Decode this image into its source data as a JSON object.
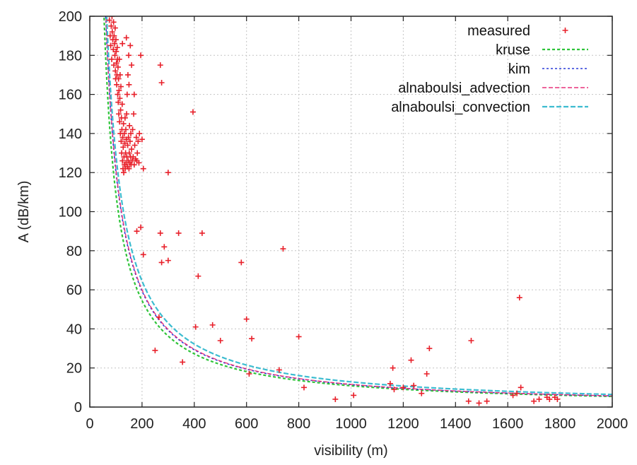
{
  "chart_data": {
    "type": "scatter",
    "title": "",
    "xlabel": "visibility (m)",
    "ylabel": "A (dB/km)",
    "xlim": [
      0,
      2000
    ],
    "ylim": [
      0,
      200
    ],
    "xticks": [
      "0",
      "200",
      "400",
      "600",
      "800",
      "1000",
      "1200",
      "1400",
      "1600",
      "1800",
      "2000"
    ],
    "yticks": [
      "0",
      "20",
      "40",
      "60",
      "80",
      "100",
      "120",
      "140",
      "160",
      "180",
      "200"
    ],
    "grid": true,
    "legend_position": "top-right",
    "series": [
      {
        "name": "measured",
        "kind": "points",
        "color": "#e8202a",
        "points": [
          [
            75,
            198
          ],
          [
            78,
            190
          ],
          [
            80,
            185
          ],
          [
            82,
            195
          ],
          [
            84,
            178
          ],
          [
            85,
            200
          ],
          [
            86,
            192
          ],
          [
            88,
            188
          ],
          [
            90,
            183
          ],
          [
            91,
            197
          ],
          [
            92,
            175
          ],
          [
            93,
            190
          ],
          [
            95,
            186
          ],
          [
            96,
            180
          ],
          [
            97,
            194
          ],
          [
            98,
            172
          ],
          [
            99,
            168
          ],
          [
            100,
            188
          ],
          [
            101,
            182
          ],
          [
            102,
            176
          ],
          [
            103,
            165
          ],
          [
            104,
            170
          ],
          [
            105,
            184
          ],
          [
            106,
            178
          ],
          [
            107,
            160
          ],
          [
            108,
            174
          ],
          [
            109,
            156
          ],
          [
            110,
            168
          ],
          [
            111,
            150
          ],
          [
            112,
            162
          ],
          [
            113,
            178
          ],
          [
            114,
            146
          ],
          [
            115,
            158
          ],
          [
            116,
            170
          ],
          [
            117,
            140
          ],
          [
            118,
            152
          ],
          [
            119,
            164
          ],
          [
            120,
            136
          ],
          [
            121,
            148
          ],
          [
            122,
            130
          ],
          [
            123,
            142
          ],
          [
            124,
            155
          ],
          [
            125,
            126
          ],
          [
            126,
            138
          ],
          [
            127,
            122
          ],
          [
            128,
            133
          ],
          [
            129,
            145
          ],
          [
            130,
            120
          ],
          [
            131,
            128
          ],
          [
            132,
            140
          ],
          [
            133,
            124
          ],
          [
            134,
            135
          ],
          [
            135,
            148
          ],
          [
            136,
            122
          ],
          [
            137,
            130
          ],
          [
            138,
            142
          ],
          [
            139,
            125
          ],
          [
            140,
            137
          ],
          [
            141,
            150
          ],
          [
            142,
            128
          ],
          [
            143,
            160
          ],
          [
            144,
            123
          ],
          [
            145,
            134
          ],
          [
            146,
            170
          ],
          [
            147,
            126
          ],
          [
            148,
            138
          ],
          [
            149,
            180
          ],
          [
            150,
            122
          ],
          [
            151,
            130
          ],
          [
            152,
            144
          ],
          [
            153,
            125
          ],
          [
            154,
            136
          ],
          [
            155,
            185
          ],
          [
            156,
            128
          ],
          [
            157,
            140
          ],
          [
            158,
            124
          ],
          [
            160,
            132
          ],
          [
            162,
            126
          ],
          [
            164,
            142
          ],
          [
            166,
            128
          ],
          [
            168,
            150
          ],
          [
            170,
            124
          ],
          [
            172,
            134
          ],
          [
            175,
            127
          ],
          [
            178,
            138
          ],
          [
            180,
            126
          ],
          [
            182,
            130
          ],
          [
            185,
            136
          ],
          [
            188,
            125
          ],
          [
            190,
            140
          ],
          [
            195,
            180
          ],
          [
            200,
            137
          ],
          [
            205,
            122
          ],
          [
            140,
            189
          ],
          [
            125,
            186
          ],
          [
            160,
            175
          ],
          [
            150,
            165
          ],
          [
            170,
            160
          ],
          [
            300,
            120
          ],
          [
            270,
            175
          ],
          [
            275,
            166
          ],
          [
            395,
            151
          ],
          [
            180,
            90
          ],
          [
            195,
            92
          ],
          [
            205,
            78
          ],
          [
            250,
            29
          ],
          [
            265,
            46
          ],
          [
            270,
            89
          ],
          [
            275,
            74
          ],
          [
            285,
            82
          ],
          [
            300,
            75
          ],
          [
            340,
            89
          ],
          [
            355,
            23
          ],
          [
            405,
            41
          ],
          [
            415,
            67
          ],
          [
            430,
            89
          ],
          [
            470,
            42
          ],
          [
            500,
            34
          ],
          [
            580,
            74
          ],
          [
            600,
            45
          ],
          [
            610,
            17
          ],
          [
            620,
            35
          ],
          [
            725,
            19
          ],
          [
            740,
            81
          ],
          [
            800,
            36
          ],
          [
            820,
            10
          ],
          [
            940,
            4
          ],
          [
            1010,
            6
          ],
          [
            1150,
            12
          ],
          [
            1160,
            20
          ],
          [
            1165,
            9
          ],
          [
            1200,
            10
          ],
          [
            1230,
            24
          ],
          [
            1240,
            11
          ],
          [
            1270,
            7
          ],
          [
            1290,
            17
          ],
          [
            1300,
            30
          ],
          [
            1450,
            3
          ],
          [
            1460,
            34
          ],
          [
            1490,
            2
          ],
          [
            1520,
            3
          ],
          [
            1620,
            6
          ],
          [
            1635,
            7
          ],
          [
            1645,
            56
          ],
          [
            1650,
            10
          ],
          [
            1700,
            3
          ],
          [
            1720,
            4
          ],
          [
            1750,
            5
          ],
          [
            1760,
            4
          ],
          [
            1780,
            5
          ],
          [
            1790,
            4
          ]
        ]
      },
      {
        "name": "kruse",
        "kind": "line",
        "color": "#2fc43a",
        "k": 10900,
        "p": 1.0
      },
      {
        "name": "kim",
        "kind": "line",
        "color": "#2a3bd8",
        "k": 13200,
        "p": 1.02
      },
      {
        "name": "alnaboulsi_advection",
        "kind": "line",
        "color": "#e8307a",
        "k": 13350,
        "p": 1.02
      },
      {
        "name": "alnaboulsi_convection",
        "kind": "line",
        "color": "#3cbcd0",
        "k": 12900,
        "p": 1.0
      }
    ]
  }
}
